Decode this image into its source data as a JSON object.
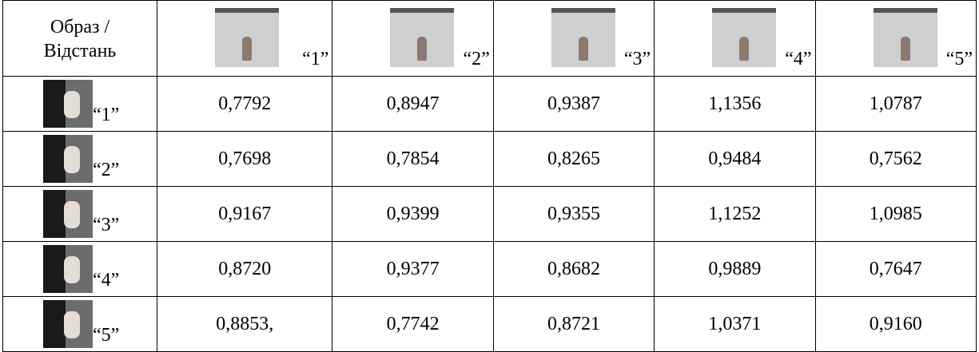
{
  "table": {
    "corner": [
      "Образ /",
      "Відстань"
    ],
    "columns": [
      "“1”",
      "“2”",
      "“3”",
      "“4”",
      "“5”"
    ],
    "rows": [
      {
        "label": "“1”",
        "values": [
          "0,7792",
          "0,8947",
          "0,9387",
          "1,1356",
          "1,0787"
        ]
      },
      {
        "label": "“2”",
        "values": [
          "0,7698",
          "0,7854",
          "0,8265",
          "0,9484",
          "0,7562"
        ]
      },
      {
        "label": "“3”",
        "values": [
          "0,9167",
          "0,9399",
          "0,9355",
          "1,1252",
          "1,0985"
        ]
      },
      {
        "label": "“4”",
        "values": [
          "0,8720",
          "0,9377",
          "0,8682",
          "0,9889",
          "0,7647"
        ]
      },
      {
        "label": "“5”",
        "values": [
          "0,8853,",
          "0,7742",
          "0,8721",
          "1,0371",
          "0,9160"
        ]
      }
    ]
  }
}
